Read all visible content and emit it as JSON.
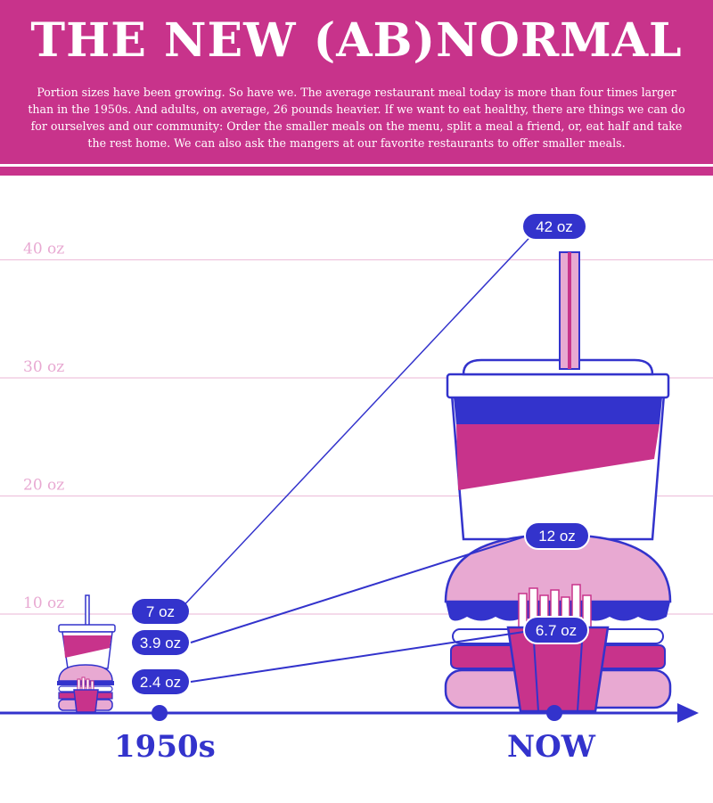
{
  "header": {
    "title": "THE NEW (AB)NORMAL",
    "intro": "Portion sizes have been growing. So have we. The average restaurant meal today is more than four times larger than in the 1950s. And adults, on average, 26 pounds heavier. If  we want to eat healthy, there are things we can do for ourselves and our community: Order the smaller meals on the menu, split a meal a friend, or, eat half and take the rest home. We can also ask the mangers at our favorite restaurants to offer smaller meals."
  },
  "colors": {
    "accent": "#c8338b",
    "navy": "#3333cc",
    "pink_light": "#e8a9d2",
    "grid": "#efc3dd"
  },
  "chart_data": {
    "type": "line",
    "x": [
      "1950s",
      "NOW"
    ],
    "y_ticks": [
      "10  oz",
      "20  oz",
      "30  oz",
      "40  oz"
    ],
    "ylim": [
      0,
      42
    ],
    "series": [
      {
        "values": [
          7,
          42
        ],
        "labels": [
          "7 oz",
          "42 oz"
        ],
        "icon": "soda-cup-icon"
      },
      {
        "values": [
          3.9,
          12
        ],
        "labels": [
          "3.9 oz",
          "12 oz"
        ],
        "icon": "burger-icon"
      },
      {
        "values": [
          2.4,
          6.7
        ],
        "labels": [
          "2.4 oz",
          "6.7 oz"
        ],
        "icon": "fries-icon"
      }
    ],
    "grid": true
  }
}
